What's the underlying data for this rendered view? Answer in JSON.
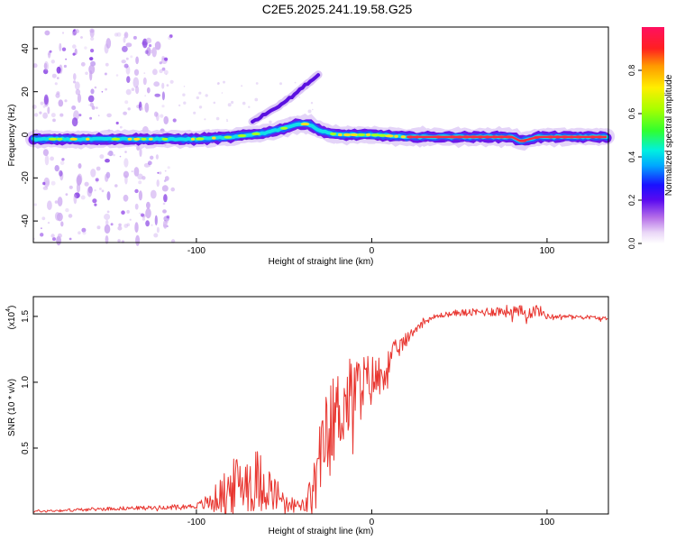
{
  "title": "C2E5.2025.241.19.58.G25",
  "colors": {
    "snr_line": "#e8352f",
    "axis": "#000000",
    "background": "#ffffff"
  },
  "chart_data": [
    {
      "type": "heatmap",
      "name": "spectrogram",
      "xlabel": "Height of straight line (km)",
      "ylabel": "Frequency (Hz)",
      "xlim": [
        -193,
        135
      ],
      "ylim": [
        -50,
        50
      ],
      "xticks": [
        -100,
        0,
        100
      ],
      "xtick_labels": [
        "-100",
        "0",
        "100"
      ],
      "yticks": [
        -40,
        -20,
        0,
        20,
        40
      ],
      "ytick_labels": [
        "-40",
        "-20",
        "0",
        "20",
        "40"
      ],
      "main_band": [
        [
          -193,
          -2
        ],
        [
          -150,
          -2
        ],
        [
          -120,
          -2
        ],
        [
          -100,
          -2
        ],
        [
          -80,
          -1
        ],
        [
          -60,
          1
        ],
        [
          -50,
          3
        ],
        [
          -42,
          5
        ],
        [
          -36,
          5
        ],
        [
          -30,
          2
        ],
        [
          -20,
          0
        ],
        [
          -10,
          0
        ],
        [
          0,
          0
        ],
        [
          20,
          -1
        ],
        [
          60,
          -1
        ],
        [
          80,
          -1
        ],
        [
          85,
          -3
        ],
        [
          95,
          -1
        ],
        [
          135,
          -1
        ]
      ],
      "harmonic_branch": [
        [
          -68,
          6
        ],
        [
          -60,
          10
        ],
        [
          -52,
          14
        ],
        [
          -45,
          18
        ],
        [
          -38,
          23
        ],
        [
          -30,
          28
        ]
      ],
      "noisy_region": [
        -193,
        -112
      ],
      "grid": false
    },
    {
      "type": "colorbar",
      "name": "colorbar",
      "label": "Normalized spectral amplitude",
      "range": [
        0,
        1
      ],
      "ticks": [
        0.0,
        0.2,
        0.4,
        0.6,
        0.8
      ],
      "tick_labels": [
        "0.0",
        "0.2",
        "0.4",
        "0.6",
        "0.8"
      ]
    },
    {
      "type": "line",
      "name": "snr",
      "xlabel": "Height of straight line (km)",
      "ylabel": "SNR (10 * v/v)",
      "y_multiplier": "(x10",
      "y_multiplier_exp": "4",
      "y_multiplier_close": ")",
      "xlim": [
        -193,
        135
      ],
      "ylim": [
        0,
        1.65
      ],
      "xticks": [
        -100,
        0,
        100
      ],
      "xtick_labels": [
        "-100",
        "0",
        "100"
      ],
      "yticks": [
        0.5,
        1.0,
        1.5
      ],
      "ytick_labels": [
        "0.5",
        "1.0",
        "1.5"
      ],
      "series": [
        {
          "name": "SNR",
          "x": [
            -193,
            -170,
            -150,
            -120,
            -100,
            -92,
            -86,
            -80,
            -74,
            -68,
            -62,
            -56,
            -50,
            -44,
            -38,
            -34,
            -30,
            -27,
            -24,
            -21,
            -18,
            -14,
            -10,
            -6,
            -2,
            2,
            6,
            10,
            14,
            18,
            22,
            26,
            30,
            40,
            50,
            60,
            70,
            80,
            90,
            95,
            100,
            110,
            120,
            135
          ],
          "base": [
            0.02,
            0.03,
            0.04,
            0.05,
            0.06,
            0.09,
            0.14,
            0.2,
            0.25,
            0.27,
            0.24,
            0.17,
            0.1,
            0.07,
            0.06,
            0.15,
            0.35,
            0.55,
            0.68,
            0.74,
            0.8,
            0.86,
            0.92,
            0.97,
            1.0,
            1.03,
            1.07,
            1.15,
            1.24,
            1.3,
            1.36,
            1.42,
            1.47,
            1.51,
            1.53,
            1.53,
            1.54,
            1.54,
            1.53,
            1.55,
            1.5,
            1.5,
            1.5,
            1.48
          ],
          "amp": [
            0.01,
            0.012,
            0.014,
            0.015,
            0.02,
            0.08,
            0.14,
            0.2,
            0.24,
            0.26,
            0.22,
            0.15,
            0.08,
            0.05,
            0.06,
            0.2,
            0.3,
            0.32,
            0.34,
            0.34,
            0.33,
            0.32,
            0.3,
            0.26,
            0.22,
            0.18,
            0.15,
            0.12,
            0.09,
            0.06,
            0.04,
            0.03,
            0.03,
            0.02,
            0.025,
            0.03,
            0.04,
            0.05,
            0.05,
            0.05,
            0.02,
            0.015,
            0.015,
            0.015
          ]
        }
      ],
      "grid": false
    }
  ]
}
